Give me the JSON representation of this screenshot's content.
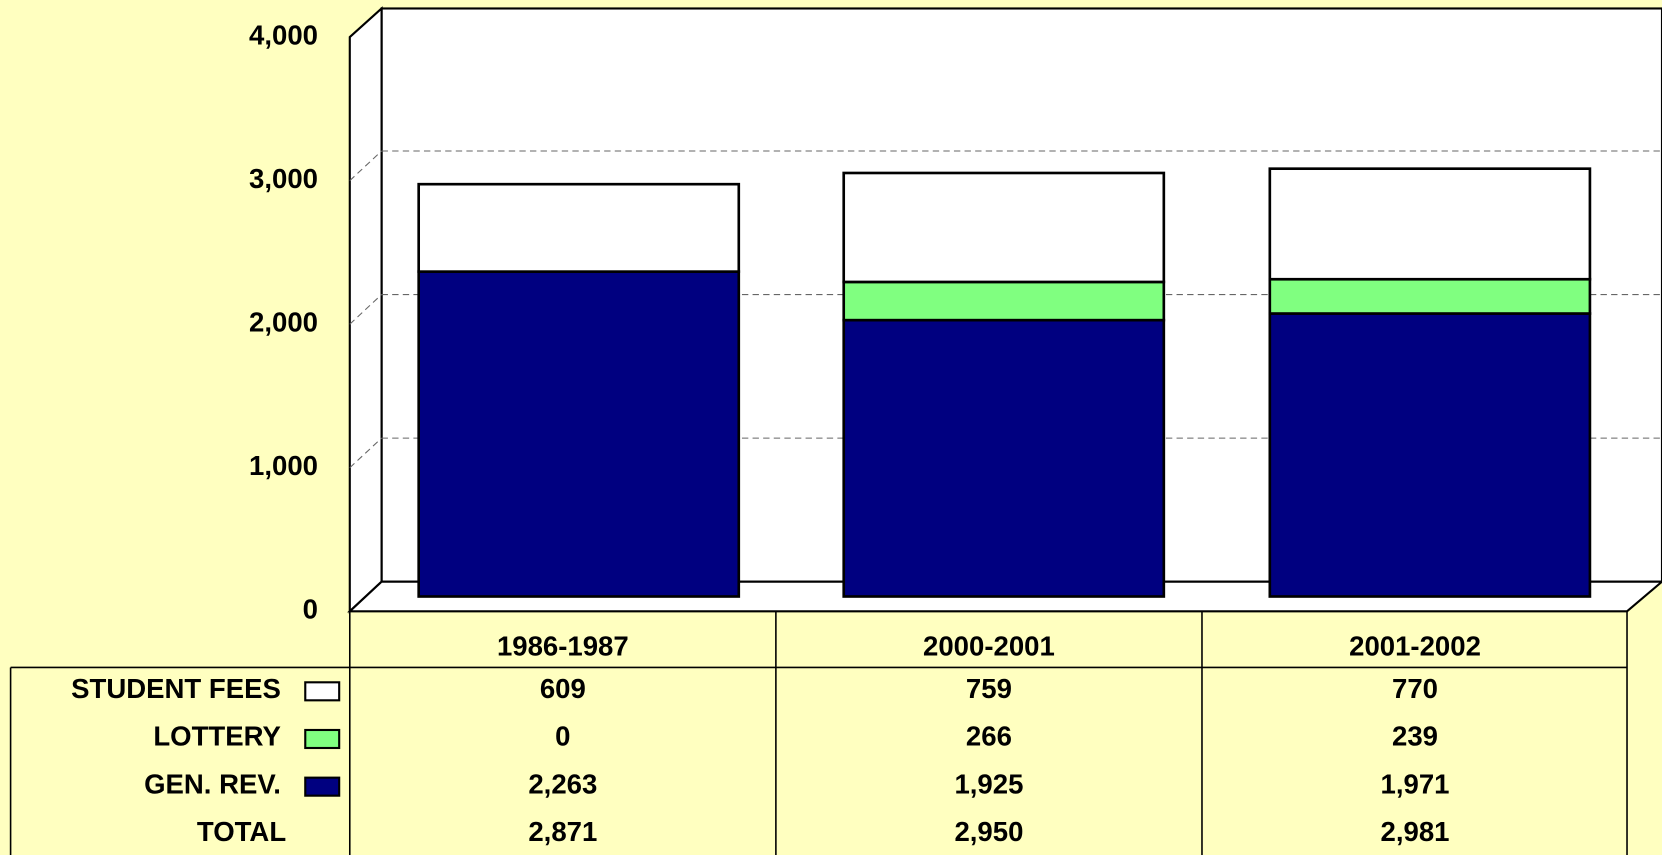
{
  "chart_data": {
    "type": "bar",
    "stacked": true,
    "categories": [
      "1986-1987",
      "2000-2001",
      "2001-2002"
    ],
    "series": [
      {
        "name": "STUDENT FEES",
        "color": "#ffffff",
        "values": [
          609,
          759,
          770
        ],
        "value_labels": [
          "609",
          "759",
          "770"
        ]
      },
      {
        "name": "LOTTERY",
        "color": "#80ff80",
        "values": [
          0,
          266,
          239
        ],
        "value_labels": [
          "0",
          "266",
          "239"
        ]
      },
      {
        "name": "GEN. REV.",
        "color": "#000080",
        "values": [
          2263,
          1925,
          1971
        ],
        "value_labels": [
          "2,263",
          "1,925",
          "1,971"
        ]
      }
    ],
    "totals": {
      "name": "TOTAL",
      "values": [
        2871,
        2950,
        2981
      ],
      "value_labels": [
        "2,871",
        "2,950",
        "2,981"
      ]
    },
    "ylim": [
      0,
      4000
    ],
    "yticks": [
      0,
      {
        "value": 1000,
        "label": "1,000"
      },
      {
        "value": 2000,
        "label": "2,000"
      },
      {
        "value": 3000,
        "label": "3,000"
      },
      {
        "value": 4000,
        "label": "4,000"
      }
    ],
    "grid": true
  }
}
